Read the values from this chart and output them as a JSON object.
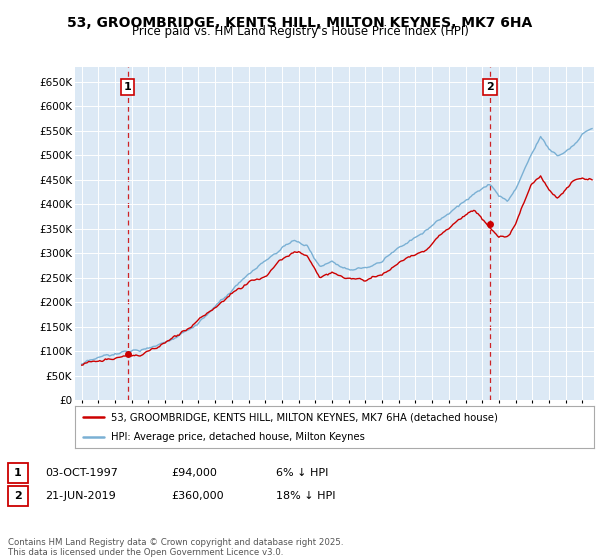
{
  "title": "53, GROOMBRIDGE, KENTS HILL, MILTON KEYNES, MK7 6HA",
  "subtitle": "Price paid vs. HM Land Registry's House Price Index (HPI)",
  "legend_line1": "53, GROOMBRIDGE, KENTS HILL, MILTON KEYNES, MK7 6HA (detached house)",
  "legend_line2": "HPI: Average price, detached house, Milton Keynes",
  "annotation1": {
    "num": "1",
    "date": "03-OCT-1997",
    "price": "£94,000",
    "pct": "6% ↓ HPI"
  },
  "annotation2": {
    "num": "2",
    "date": "21-JUN-2019",
    "price": "£360,000",
    "pct": "18% ↓ HPI"
  },
  "footer": "Contains HM Land Registry data © Crown copyright and database right 2025.\nThis data is licensed under the Open Government Licence v3.0.",
  "price_color": "#cc0000",
  "hpi_color": "#7ab0d4",
  "vline_color": "#cc0000",
  "background_color": "#ffffff",
  "chart_bg_color": "#dce9f5",
  "grid_color": "#ffffff",
  "ylim": [
    0,
    680000
  ],
  "yticks": [
    0,
    50000,
    100000,
    150000,
    200000,
    250000,
    300000,
    350000,
    400000,
    450000,
    500000,
    550000,
    600000,
    650000
  ],
  "sale1_year": 1997.75,
  "sale2_year": 2019.47,
  "sale1_price": 94000,
  "sale2_price": 360000,
  "title_fontsize": 10,
  "subtitle_fontsize": 8.5
}
